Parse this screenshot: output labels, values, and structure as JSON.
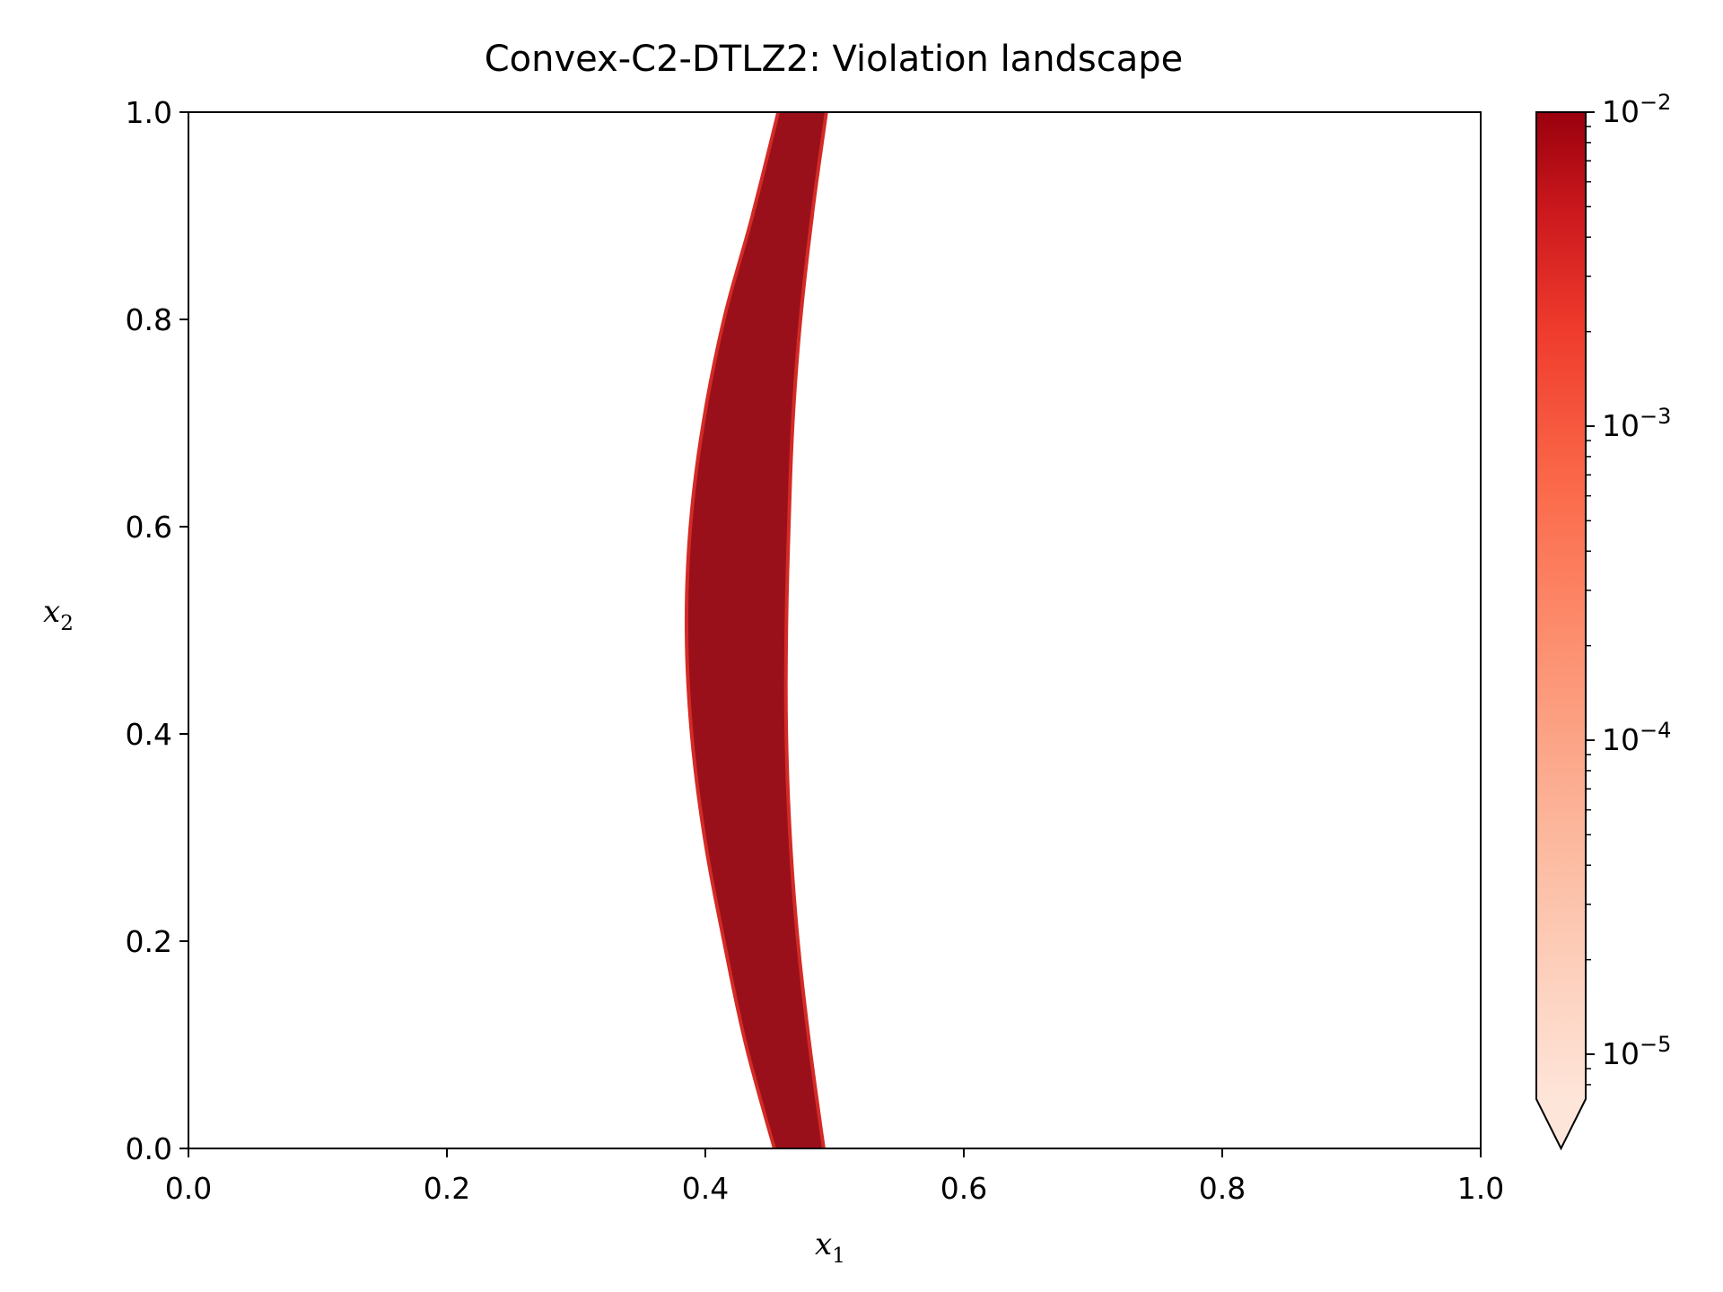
{
  "chart_data": {
    "type": "heatmap",
    "title": "Convex-C2-DTLZ2: Violation landscape",
    "xlabel": "x",
    "xlabel_sub": "1",
    "ylabel": "x",
    "ylabel_sub": "2",
    "xlim": [
      0.0,
      1.0
    ],
    "ylim": [
      0.0,
      1.0
    ],
    "xticks": [
      "0.0",
      "0.2",
      "0.4",
      "0.6",
      "0.8",
      "1.0"
    ],
    "yticks": [
      "0.0",
      "0.2",
      "0.4",
      "0.6",
      "0.8",
      "1.0"
    ],
    "colormap": "Reds",
    "color_scale": "log",
    "colorbar": {
      "vmin": 1e-05,
      "vmax": 0.01,
      "extend": "min",
      "ticks": [
        {
          "base": "10",
          "exp": "−2",
          "value": 0.01
        },
        {
          "base": "10",
          "exp": "−3",
          "value": 0.001
        },
        {
          "base": "10",
          "exp": "−4",
          "value": 0.0001
        },
        {
          "base": "10",
          "exp": "−5",
          "value": 1e-05
        }
      ]
    },
    "violation_band": {
      "x2": [
        0.0,
        0.1,
        0.2,
        0.3,
        0.4,
        0.5,
        0.6,
        0.7,
        0.8,
        0.9,
        1.0
      ],
      "x1_left": [
        0.452,
        0.43,
        0.413,
        0.398,
        0.388,
        0.384,
        0.387,
        0.397,
        0.413,
        0.435,
        0.455
      ],
      "x1_right": [
        0.493,
        0.482,
        0.473,
        0.467,
        0.464,
        0.464,
        0.466,
        0.469,
        0.475,
        0.484,
        0.495
      ]
    },
    "band_colors": {
      "core": "#99101a",
      "edge": "#d42a26",
      "background": "#ffffff"
    }
  }
}
